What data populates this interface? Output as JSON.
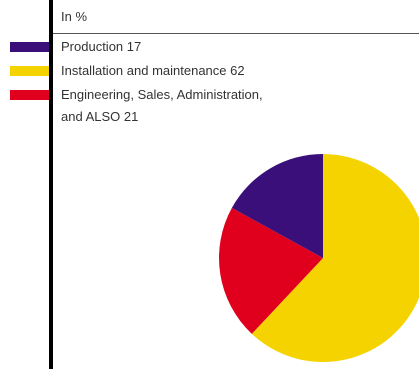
{
  "chart_data": {
    "type": "pie",
    "unit_label": "In %",
    "legend_position": "top-left",
    "slices": [
      {
        "label": "Production 17",
        "value": 17,
        "color": "#3a0f7a"
      },
      {
        "label": "Installation and maintenance 62",
        "value": 62,
        "color": "#f5d300"
      },
      {
        "label": "Engineering, Sales, Administration,",
        "label_line2": "and ALSO 21",
        "value": 21,
        "color": "#e0001e"
      }
    ]
  }
}
